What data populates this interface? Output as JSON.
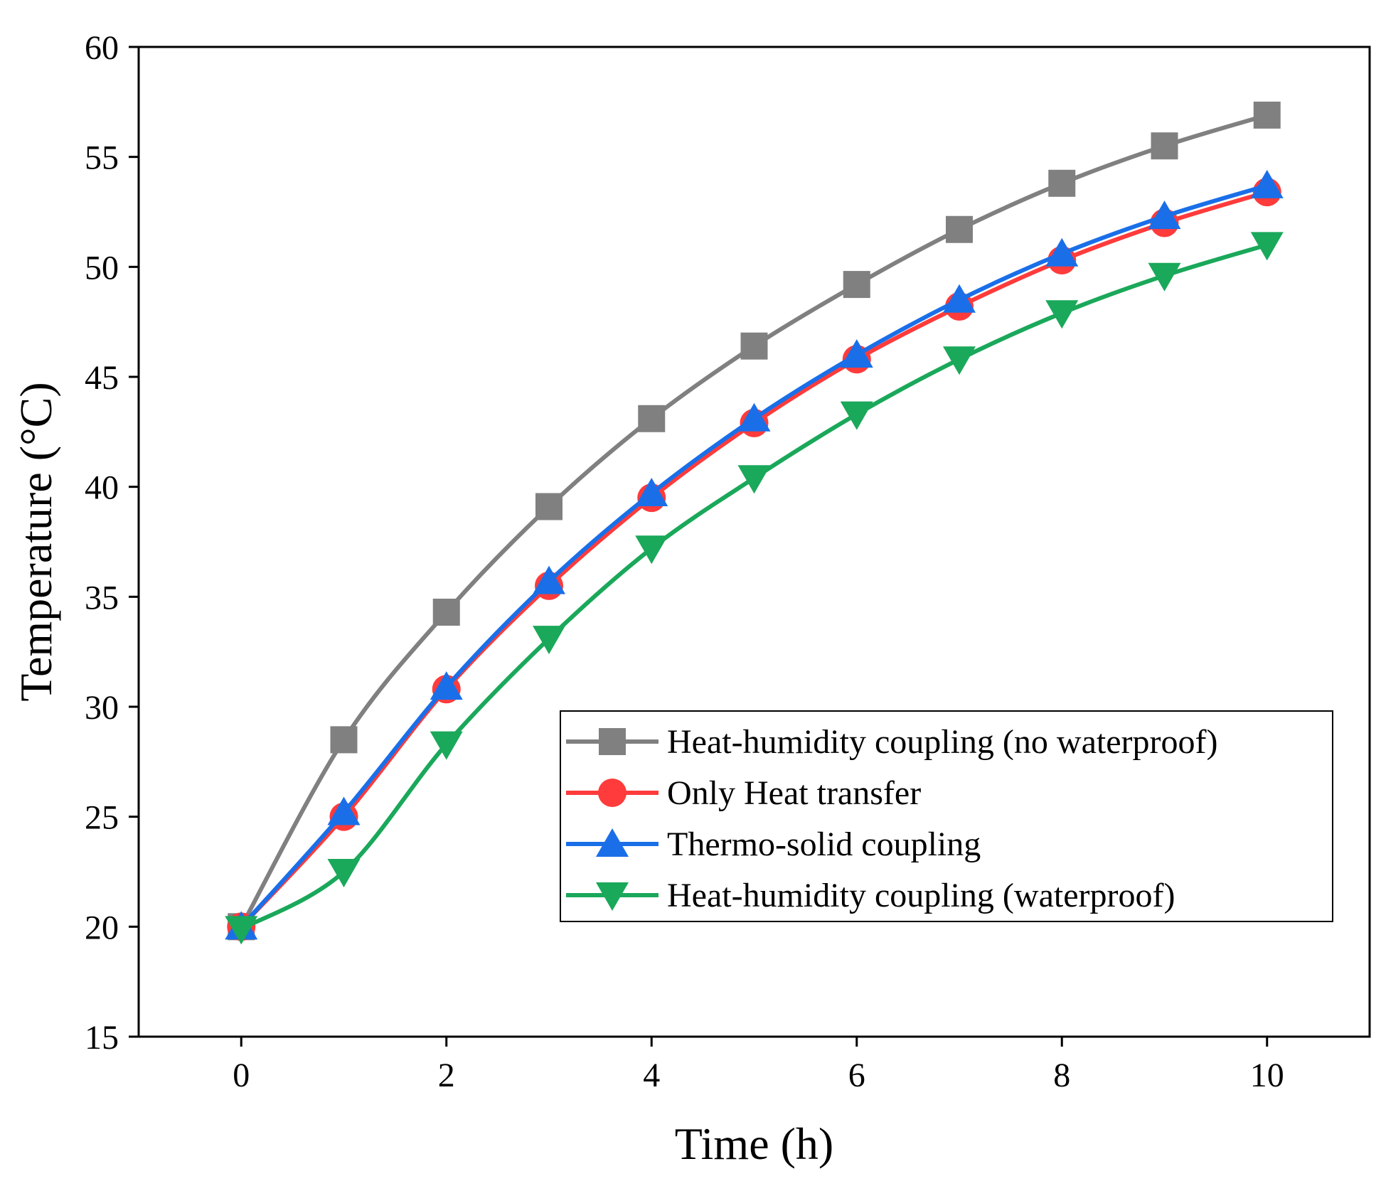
{
  "chart_data": {
    "type": "line",
    "title": "",
    "xlabel": "Time (h)",
    "ylabel": "Temperature (°C)",
    "xlim": [
      -1,
      11
    ],
    "ylim": [
      15,
      60
    ],
    "xticks": [
      0,
      2,
      4,
      6,
      8,
      10
    ],
    "yticks": [
      15,
      20,
      25,
      30,
      35,
      40,
      45,
      50,
      55,
      60
    ],
    "grid": false,
    "legend_position": "lower-right",
    "x": [
      0,
      1,
      2,
      3,
      4,
      5,
      6,
      7,
      8,
      9,
      10
    ],
    "series": [
      {
        "name": "Heat-humidity coupling (no waterproof)",
        "color": "#808080",
        "marker": "square",
        "values": [
          20.0,
          28.5,
          34.3,
          39.1,
          43.1,
          46.4,
          49.2,
          51.7,
          53.8,
          55.5,
          56.9
        ]
      },
      {
        "name": "Only Heat transfer",
        "color": "#ff3b3b",
        "marker": "circle",
        "values": [
          20.0,
          25.0,
          30.8,
          35.5,
          39.5,
          42.9,
          45.8,
          48.2,
          50.3,
          52.0,
          53.4
        ]
      },
      {
        "name": "Thermo-solid coupling",
        "color": "#1a6fe8",
        "marker": "triangle-up",
        "values": [
          20.0,
          25.2,
          30.9,
          35.7,
          39.7,
          43.1,
          46.0,
          48.5,
          50.6,
          52.3,
          53.7
        ]
      },
      {
        "name": "Heat-humidity coupling (waterproof)",
        "color": "#1aa85a",
        "marker": "triangle-down",
        "values": [
          19.9,
          22.5,
          28.3,
          33.1,
          37.2,
          40.4,
          43.3,
          45.8,
          47.9,
          49.6,
          51.0
        ]
      }
    ]
  }
}
